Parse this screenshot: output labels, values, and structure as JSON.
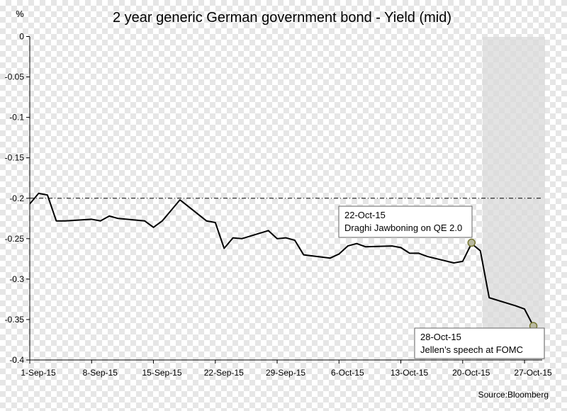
{
  "chart_data": {
    "type": "line",
    "title": "2 year generic German government bond - Yield (mid)",
    "ylabel": "%",
    "xlabel": "",
    "source": "Source:Bloomberg",
    "ylim": [
      -0.4,
      0
    ],
    "yticks": [
      0,
      -0.05,
      -0.1,
      -0.15,
      -0.2,
      -0.25,
      -0.3,
      -0.35,
      -0.4
    ],
    "ytick_labels": [
      "0",
      "-0.05",
      "-0.1",
      "-0.15",
      "-0.2",
      "-0.25",
      "-0.3",
      "-0.35",
      "-0.4"
    ],
    "xlim": [
      "2015-09-01",
      "2015-10-29"
    ],
    "xticks": [
      "2015-09-01",
      "2015-09-08",
      "2015-09-15",
      "2015-09-22",
      "2015-09-29",
      "2015-10-06",
      "2015-10-13",
      "2015-10-20",
      "2015-10-27"
    ],
    "xtick_labels": [
      "1-Sep-15",
      "8-Sep-15",
      "15-Sep-15",
      "22-Sep-15",
      "29-Sep-15",
      "6-Oct-15",
      "13-Oct-15",
      "20-Oct-15",
      "27-Oct-15"
    ],
    "reference_line": -0.2,
    "shaded_region": [
      "2015-10-22",
      "2015-10-29"
    ],
    "colors": {
      "line": "#000000",
      "marker": "#777733",
      "shade": "#d9d9d9"
    },
    "series": [
      {
        "x": [
          "2015-09-01",
          "2015-09-02",
          "2015-09-03",
          "2015-09-04",
          "2015-09-05",
          "2015-09-08",
          "2015-09-09",
          "2015-09-10",
          "2015-09-11",
          "2015-09-14",
          "2015-09-15",
          "2015-09-16",
          "2015-09-17",
          "2015-09-18",
          "2015-09-21",
          "2015-09-22",
          "2015-09-23",
          "2015-09-24",
          "2015-09-25",
          "2015-09-28",
          "2015-09-29",
          "2015-09-30",
          "2015-10-01",
          "2015-10-02",
          "2015-10-05",
          "2015-10-06",
          "2015-10-07",
          "2015-10-08",
          "2015-10-09",
          "2015-10-12",
          "2015-10-13",
          "2015-10-14",
          "2015-10-15",
          "2015-10-16",
          "2015-10-19",
          "2015-10-20",
          "2015-10-21",
          "2015-10-22",
          "2015-10-23",
          "2015-10-26",
          "2015-10-27",
          "2015-10-28"
        ],
        "values": [
          -0.207,
          -0.194,
          -0.196,
          -0.228,
          -0.228,
          -0.226,
          -0.228,
          -0.222,
          -0.225,
          -0.228,
          -0.236,
          -0.228,
          -0.215,
          -0.202,
          -0.228,
          -0.23,
          -0.262,
          -0.249,
          -0.25,
          -0.24,
          -0.25,
          -0.249,
          -0.252,
          -0.27,
          -0.274,
          -0.269,
          -0.259,
          -0.256,
          -0.26,
          -0.259,
          -0.261,
          -0.268,
          -0.268,
          -0.272,
          -0.28,
          -0.278,
          -0.256,
          -0.265,
          -0.323,
          -0.333,
          -0.337,
          -0.358
        ]
      }
    ],
    "annotations": [
      {
        "x": "2015-10-21",
        "y": -0.255,
        "lines": [
          "22-Oct-15",
          "Draghi Jawboning on QE 2.0"
        ]
      },
      {
        "x": "2015-10-28",
        "y": -0.358,
        "lines": [
          "28-Oct-15",
          "Jellen’s speech at FOMC"
        ]
      }
    ]
  }
}
